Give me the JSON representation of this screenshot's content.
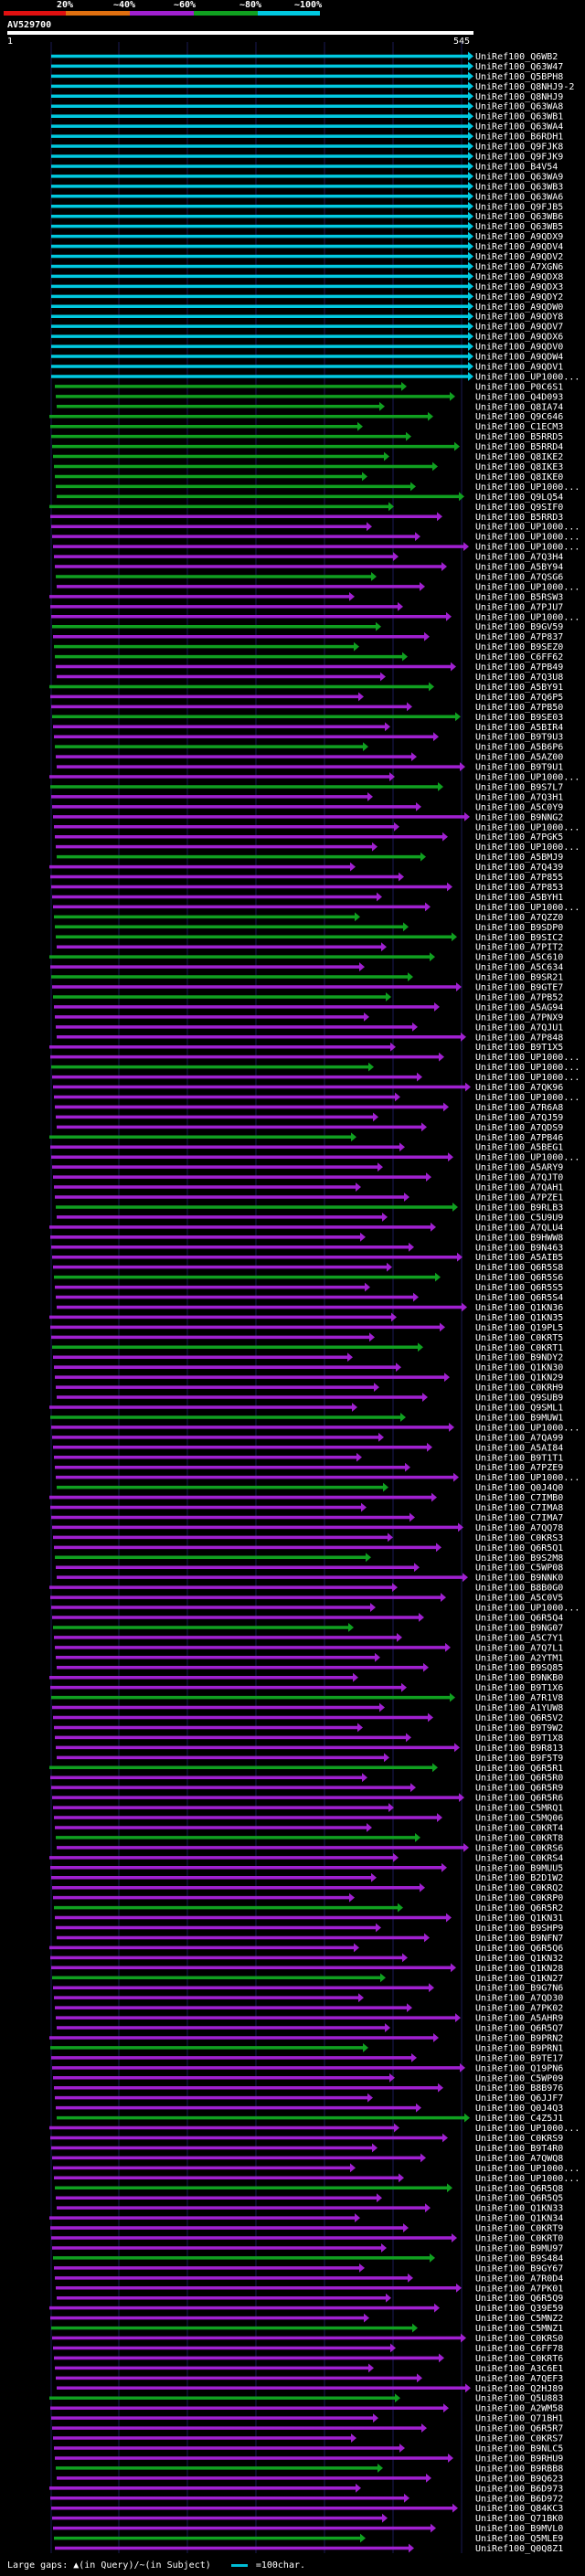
{
  "legend": {
    "labels": [
      "20%",
      "~40%",
      "~60%",
      "~80%",
      "~100%"
    ],
    "colors": [
      "#e01010",
      "#e07010",
      "#a020d0",
      "#10a020",
      "#00c8e0"
    ]
  },
  "query": {
    "id": "AV529700",
    "start": "1",
    "end": "545"
  },
  "footer": {
    "gaps_text": "Large gaps: ▲(in Query)/~(in Subject)",
    "scale_text": "=100char."
  },
  "hits": [
    "UniRef100_Q6WB2",
    "UniRef100_Q63W47",
    "UniRef100_Q5BPH8",
    "UniRef100_Q8NHJ9-2",
    "UniRef100_Q8NHJ9",
    "UniRef100_Q63WA8",
    "UniRef100_Q63WB1",
    "UniRef100_Q63WA4",
    "UniRef100_B6RDH1",
    "UniRef100_Q9FJK8",
    "UniRef100_Q9FJK9",
    "UniRef100_B4V54",
    "UniRef100_Q63WA9",
    "UniRef100_Q63WB3",
    "UniRef100_Q63WA6",
    "UniRef100_Q9FJB5",
    "UniRef100_Q63WB6",
    "UniRef100_Q63WB5",
    "UniRef100_A9QDX9",
    "UniRef100_A9QDV4",
    "UniRef100_A9QDV2",
    "UniRef100_A7XGN6",
    "UniRef100_A9QDX8",
    "UniRef100_A9QDX3",
    "UniRef100_A9QDY2",
    "UniRef100_A9QDW0",
    "UniRef100_A9QDY8",
    "UniRef100_A9QDV7",
    "UniRef100_A9QDX6",
    "UniRef100_A9QDV0",
    "UniRef100_A9QDW4",
    "UniRef100_A9QDV1",
    "UniRef100_UP1000...",
    "UniRef100_P0C6S1",
    "UniRef100_Q4D093",
    "UniRef100_Q8IA74",
    "UniRef100_Q9C646",
    "UniRef100_C1ECM3",
    "UniRef100_B5RRD5",
    "UniRef100_B5RRD4",
    "UniRef100_Q8IKE2",
    "UniRef100_Q8IKE3",
    "UniRef100_Q8IKE0",
    "UniRef100_UP1000...",
    "UniRef100_Q9LQ54",
    "UniRef100_Q9SIF0",
    "UniRef100_B5RRD3",
    "UniRef100_UP1000...",
    "UniRef100_UP1000...",
    "UniRef100_UP1000...",
    "UniRef100_A7Q3H4",
    "UniRef100_A5BY94",
    "UniRef100_A7QSG6",
    "UniRef100_UP1000...",
    "UniRef100_B5RSW3",
    "UniRef100_A7PJU7",
    "UniRef100_UP1000...",
    "UniRef100_B9GV59",
    "UniRef100_A7P837",
    "UniRef100_B9SEZ0",
    "UniRef100_C6FF62",
    "UniRef100_A7PB49",
    "UniRef100_A7Q3U8",
    "UniRef100_A5BY91",
    "UniRef100_A7Q6P5",
    "UniRef100_A7PB50",
    "UniRef100_B9SE03",
    "UniRef100_A5BIR4",
    "UniRef100_B9T9U3",
    "UniRef100_A5B6P6",
    "UniRef100_A5AZ00",
    "UniRef100_B9T9U1",
    "UniRef100_UP1000...",
    "UniRef100_B9S7L7",
    "UniRef100_A7Q3H1",
    "UniRef100_A5C0Y9",
    "UniRef100_B9NNG2",
    "UniRef100_UP1000...",
    "UniRef100_A7PGK5",
    "UniRef100_UP1000...",
    "UniRef100_A5BMJ9",
    "UniRef100_A7Q439",
    "UniRef100_A7P855",
    "UniRef100_A7P853",
    "UniRef100_A5BYH1",
    "UniRef100_UP1000...",
    "UniRef100_A7QZZ0",
    "UniRef100_B9SDP0",
    "UniRef100_B9SIC2",
    "UniRef100_A7PIT2",
    "UniRef100_A5C610",
    "UniRef100_A5C634",
    "UniRef100_B9SR21",
    "UniRef100_B9GTE7",
    "UniRef100_A7PB52",
    "UniRef100_A5AG94",
    "UniRef100_A7PNX9",
    "UniRef100_A7QJU1",
    "UniRef100_A7P848",
    "UniRef100_B9T1X5",
    "UniRef100_UP1000...",
    "UniRef100_UP1000...",
    "UniRef100_UP1000...",
    "UniRef100_A7QK96",
    "UniRef100_UP1000...",
    "UniRef100_A7R6A8",
    "UniRef100_A7QJ59",
    "UniRef100_A7QDS9",
    "UniRef100_A7PB46",
    "UniRef100_A5BEG1",
    "UniRef100_UP1000...",
    "UniRef100_A5ARY9",
    "UniRef100_A7QJT0",
    "UniRef100_A7QAH1",
    "UniRef100_A7PZE1",
    "UniRef100_B9RLB3",
    "UniRef100_C5U9U9",
    "UniRef100_A7QLU4",
    "UniRef100_B9HWW8",
    "UniRef100_B9N463",
    "UniRef100_A5AIB5",
    "UniRef100_Q6R5S8",
    "UniRef100_Q6R5S6",
    "UniRef100_Q6R5S5",
    "UniRef100_Q6R5S4",
    "UniRef100_Q1KN36",
    "UniRef100_Q1KN35",
    "UniRef100_Q19PL5",
    "UniRef100_C0KRT5",
    "UniRef100_C0KRT1",
    "UniRef100_B9NDY2",
    "UniRef100_Q1KN30",
    "UniRef100_Q1KN29",
    "UniRef100_C0KRH9",
    "UniRef100_Q9SUB9",
    "UniRef100_Q9SML1",
    "UniRef100_B9MUW1",
    "UniRef100_UP1000...",
    "UniRef100_A7QA99",
    "UniRef100_A5AI84",
    "UniRef100_B9T1T1",
    "UniRef100_A7PZE9",
    "UniRef100_UP1000...",
    "UniRef100_Q0J4Q0",
    "UniRef100_C7IMB0",
    "UniRef100_C7IMA8",
    "UniRef100_C7IMA7",
    "UniRef100_A7QQ78",
    "UniRef100_C0KRS3",
    "UniRef100_Q6R5Q1",
    "UniRef100_B9S2M8",
    "UniRef100_C5WP08",
    "UniRef100_B9NNK0",
    "UniRef100_B8B0G0",
    "UniRef100_A5C0V5",
    "UniRef100_UP1000...",
    "UniRef100_Q6R5Q4",
    "UniRef100_B9NG07",
    "UniRef100_A5C7Y1",
    "UniRef100_A7Q7L1",
    "UniRef100_A2YTM1",
    "UniRef100_B9SQ85",
    "UniRef100_B9NKB0",
    "UniRef100_B9T1X6",
    "UniRef100_A7R1V8",
    "UniRef100_A1YUW8",
    "UniRef100_Q6R5V2",
    "UniRef100_B9T9W2",
    "UniRef100_B9T1X8",
    "UniRef100_B9R813",
    "UniRef100_B9F5T9",
    "UniRef100_Q6R5R1",
    "UniRef100_Q6R5R0",
    "UniRef100_Q6R5R9",
    "UniRef100_Q6R5R6",
    "UniRef100_C5MRQ1",
    "UniRef100_C5MQ06",
    "UniRef100_C0KRT4",
    "UniRef100_C0KRT8",
    "UniRef100_C0KRS6",
    "UniRef100_C0KRS4",
    "UniRef100_B9MUU5",
    "UniRef100_B2D1W2",
    "UniRef100_C0KRQ2",
    "UniRef100_C0KRP0",
    "UniRef100_Q6R5R2",
    "UniRef100_Q1KN31",
    "UniRef100_B9SHP9",
    "UniRef100_B9NFN7",
    "UniRef100_Q6R5Q6",
    "UniRef100_Q1KN32",
    "UniRef100_Q1KN28",
    "UniRef100_Q1KN27",
    "UniRef100_B9G7N6",
    "UniRef100_A7QD30",
    "UniRef100_A7PK02",
    "UniRef100_A5AHR9",
    "UniRef100_Q6R5Q7",
    "UniRef100_B9PRN2",
    "UniRef100_B9PRN1",
    "UniRef100_B9TE17",
    "UniRef100_Q19PN6",
    "UniRef100_C5WP09",
    "UniRef100_B8B976",
    "UniRef100_Q6JJF7",
    "UniRef100_Q0J4Q3",
    "UniRef100_C4Z5J1",
    "UniRef100_UP1000...",
    "UniRef100_C0KRS9",
    "UniRef100_B9T4R0",
    "UniRef100_A7QWQ8",
    "UniRef100_UP1000...",
    "UniRef100_UP1000...",
    "UniRef100_Q6R5Q8",
    "UniRef100_Q6R5Q5",
    "UniRef100_Q1KN33",
    "UniRef100_Q1KN34",
    "UniRef100_C0KRT9",
    "UniRef100_C0KRT0",
    "UniRef100_B9MU97",
    "UniRef100_B9S484",
    "UniRef100_B9GY67",
    "UniRef100_A7R0D4",
    "UniRef100_A7PK01",
    "UniRef100_Q6R5Q9",
    "UniRef100_Q39E59",
    "UniRef100_C5MNZ2",
    "UniRef100_C5MNZ1",
    "UniRef100_C0KRS0",
    "UniRef100_C6FF78",
    "UniRef100_C0KRT6",
    "UniRef100_A3C6E1",
    "UniRef100_A7QEF3",
    "UniRef100_Q2HJ89",
    "UniRef100_Q5U883",
    "UniRef100_A2WM58",
    "UniRef100_Q71BH1",
    "UniRef100_Q6R5R7",
    "UniRef100_C0KRS7",
    "UniRef100_B9NLC5",
    "UniRef100_B9RHU9",
    "UniRef100_B9RBB8",
    "UniRef100_B9Q623",
    "UniRef100_B6D973",
    "UniRef100_B6D972",
    "UniRef100_Q84KC3",
    "UniRef100_Q71BK0",
    "UniRef100_B9MVL0",
    "UniRef100_Q5MLE9",
    "UniRef100_Q0Q8Z1"
  ]
}
